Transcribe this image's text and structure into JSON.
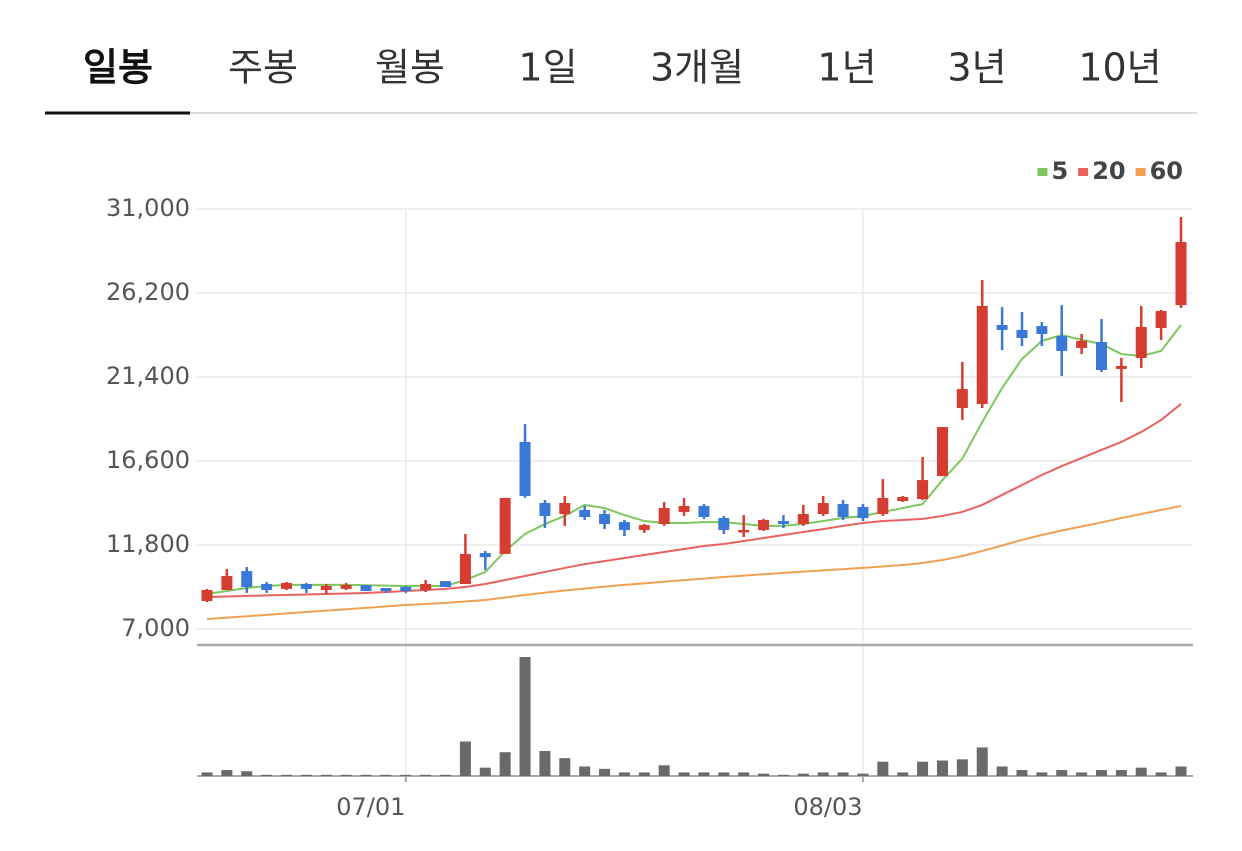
{
  "tabs": {
    "items": [
      "일봉",
      "주봉",
      "월봉",
      "1일",
      "3개월",
      "1년",
      "3년",
      "10년"
    ],
    "selected": 0
  },
  "chart_data": {
    "type": "candlestick",
    "categories": [
      null,
      null,
      null,
      null,
      null,
      null,
      null,
      null,
      null,
      null,
      "07/01",
      null,
      null,
      null,
      null,
      null,
      null,
      null,
      null,
      null,
      null,
      null,
      null,
      null,
      null,
      null,
      null,
      null,
      null,
      null,
      null,
      null,
      null,
      "08/03",
      null,
      null,
      null,
      null,
      null,
      null,
      null,
      null,
      null,
      null,
      null,
      null,
      null,
      null,
      null,
      null
    ],
    "open": [
      8600,
      9230,
      10310,
      9570,
      9290,
      9570,
      9230,
      9290,
      9510,
      9340,
      9400,
      9230,
      9740,
      9570,
      11340,
      11290,
      17690,
      14200,
      13570,
      13800,
      13570,
      13110,
      12660,
      13000,
      13690,
      14030,
      13340,
      12540,
      12660,
      13170,
      13000,
      13570,
      14140,
      13970,
      13570,
      14310,
      14430,
      15740,
      19630,
      19860,
      24370,
      24090,
      24310,
      23740,
      23060,
      23400,
      21860,
      22490,
      24200,
      25510
    ],
    "high": [
      9290,
      10430,
      10540,
      9690,
      9690,
      9630,
      9570,
      9630,
      9510,
      9340,
      9460,
      9800,
      9740,
      12430,
      11460,
      14490,
      18710,
      14370,
      14600,
      14030,
      13800,
      13230,
      13000,
      14260,
      14490,
      14140,
      13460,
      13510,
      13290,
      13510,
      14090,
      14600,
      14370,
      14140,
      15570,
      14600,
      16830,
      18540,
      22260,
      26940,
      25400,
      25110,
      24540,
      25510,
      23860,
      24710,
      22490,
      25460,
      25230,
      30540
    ],
    "low": [
      8540,
      9230,
      9060,
      9060,
      9230,
      9060,
      9000,
      9230,
      9170,
      9060,
      9060,
      9110,
      9400,
      9570,
      10370,
      11290,
      14490,
      12770,
      12890,
      13230,
      12710,
      12310,
      12490,
      12890,
      13460,
      13290,
      12430,
      12260,
      12600,
      12770,
      12890,
      13460,
      13230,
      13170,
      13460,
      14260,
      14370,
      15740,
      18940,
      19630,
      22940,
      23170,
      23170,
      21460,
      22710,
      21690,
      19970,
      21910,
      23510,
      25340
    ],
    "close": [
      9230,
      10030,
      9400,
      9230,
      9630,
      9290,
      9460,
      9510,
      9170,
      9170,
      9170,
      9570,
      9400,
      11290,
      11110,
      14490,
      14600,
      13460,
      14200,
      13400,
      13000,
      12660,
      12940,
      13910,
      14030,
      13400,
      12660,
      12660,
      13230,
      13000,
      13570,
      14200,
      13400,
      13340,
      14490,
      14540,
      15510,
      18540,
      20710,
      25460,
      24090,
      23630,
      23860,
      22890,
      23460,
      21800,
      22030,
      24260,
      25170,
      29110
    ],
    "up_color": "#d43d2f",
    "down_color": "#3a78d8",
    "series": [
      {
        "name": "5",
        "color": "#7ec65e",
        "values": [
          9000,
          9170,
          9340,
          9460,
          9520,
          9520,
          9520,
          9520,
          9500,
          9480,
          9460,
          9460,
          9460,
          9800,
          10260,
          11460,
          12430,
          13000,
          13460,
          14090,
          13910,
          13510,
          13170,
          13060,
          13060,
          13110,
          13110,
          13000,
          12890,
          12890,
          13000,
          13170,
          13340,
          13460,
          13690,
          13910,
          14140,
          15510,
          16740,
          18830,
          20770,
          22430,
          23460,
          23800,
          23520,
          23290,
          22710,
          22600,
          22890,
          24370
        ]
      },
      {
        "name": "20",
        "color": "#e8625f",
        "values": [
          8830,
          8860,
          8890,
          8920,
          8940,
          8970,
          9000,
          9030,
          9060,
          9110,
          9170,
          9230,
          9290,
          9400,
          9570,
          9800,
          10030,
          10260,
          10490,
          10710,
          10880,
          11060,
          11230,
          11400,
          11570,
          11740,
          11860,
          12030,
          12200,
          12370,
          12540,
          12710,
          12890,
          13060,
          13170,
          13230,
          13290,
          13460,
          13690,
          14090,
          14660,
          15230,
          15800,
          16310,
          16770,
          17230,
          17690,
          18260,
          18940,
          19860
        ]
      },
      {
        "name": "60",
        "color": "#f0a052",
        "values": [
          7570,
          7650,
          7730,
          7810,
          7890,
          7970,
          8050,
          8130,
          8210,
          8290,
          8370,
          8430,
          8490,
          8570,
          8660,
          8800,
          8940,
          9080,
          9200,
          9310,
          9420,
          9520,
          9610,
          9700,
          9790,
          9880,
          9970,
          10050,
          10130,
          10210,
          10280,
          10350,
          10420,
          10490,
          10570,
          10660,
          10770,
          10940,
          11170,
          11460,
          11770,
          12090,
          12370,
          12630,
          12860,
          13090,
          13340,
          13570,
          13800,
          14030
        ]
      }
    ],
    "volume": {
      "color": "#6a6a6a",
      "values": [
        3,
        5,
        4,
        1,
        1,
        1,
        1,
        1,
        1,
        1,
        1,
        1,
        1,
        29,
        7,
        20,
        100,
        21,
        15,
        8,
        6,
        3,
        3,
        9,
        3,
        3,
        3,
        3,
        2,
        1,
        2,
        3,
        3,
        2,
        12,
        3,
        12,
        13,
        14,
        24,
        8,
        5,
        3,
        5,
        3,
        5,
        5,
        7,
        3,
        8
      ]
    },
    "ylim": [
      7000,
      31000
    ],
    "yticks": [
      {
        "value": 7000,
        "label": "7,000"
      },
      {
        "value": 11800,
        "label": "11,800"
      },
      {
        "value": 16600,
        "label": "16,600"
      },
      {
        "value": 21400,
        "label": "21,400"
      },
      {
        "value": 26200,
        "label": "26,200"
      },
      {
        "value": 31000,
        "label": "31,000"
      }
    ],
    "grid": true,
    "legend": "top-right"
  }
}
